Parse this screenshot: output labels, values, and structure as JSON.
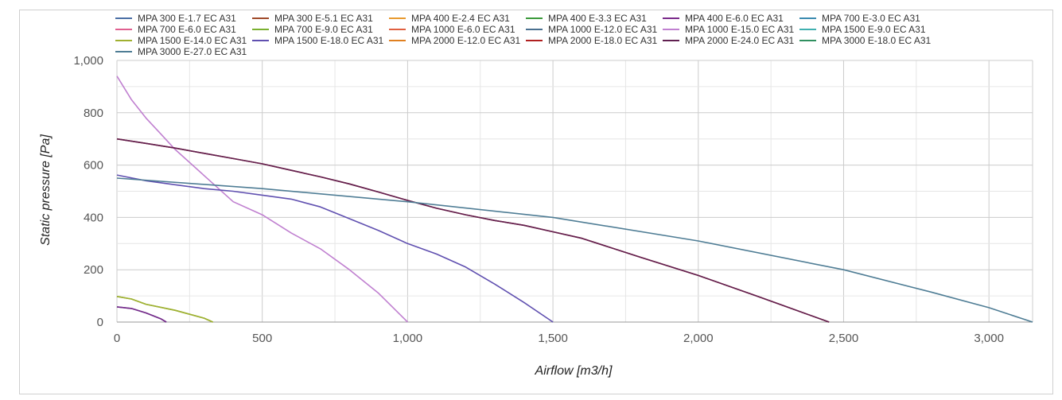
{
  "chart_data": {
    "type": "line",
    "title": "",
    "xlabel": "Airflow [m3/h]",
    "ylabel": "Static pressure [Pa]",
    "xlim": [
      0,
      3150
    ],
    "ylim": [
      0,
      1000
    ],
    "x_ticks": [
      0,
      500,
      1000,
      1500,
      2000,
      2500,
      3000
    ],
    "x_tick_labels": [
      "0",
      "500",
      "1,000",
      "1,500",
      "2,000",
      "2,500",
      "3,000"
    ],
    "y_ticks": [
      0,
      200,
      400,
      600,
      800,
      1000
    ],
    "y_tick_labels": [
      "0",
      "200",
      "400",
      "600",
      "800",
      "1,000"
    ],
    "grid": true,
    "legend_position": "top",
    "series": [
      {
        "name": "MPA 300 E-1.7 EC A31",
        "color": "#4a6fa5",
        "x": [
          0,
          50,
          100,
          150,
          170
        ],
        "y": [
          58,
          52,
          35,
          13,
          0
        ]
      },
      {
        "name": "MPA 300 E-5.1 EC A31",
        "color": "#a04a2a",
        "x": [],
        "y": []
      },
      {
        "name": "MPA 400 E-2.4 EC A31",
        "color": "#e89a2e",
        "x": [],
        "y": []
      },
      {
        "name": "MPA 400 E-3.3 EC A31",
        "color": "#3a9a3a",
        "x": [],
        "y": []
      },
      {
        "name": "MPA 400 E-6.0 EC A31",
        "color": "#7a2a8a",
        "x": [
          0,
          50,
          100,
          150,
          170
        ],
        "y": [
          58,
          52,
          35,
          13,
          0
        ]
      },
      {
        "name": "MPA 700 E-3.0 EC A31",
        "color": "#3a8ab0",
        "x": [],
        "y": []
      },
      {
        "name": "MPA 700 E-6.0 EC A31",
        "color": "#e06090",
        "x": [],
        "y": []
      },
      {
        "name": "MPA 700 E-9.0 EC A31",
        "color": "#7ab030",
        "x": [
          0,
          50,
          100,
          200,
          300,
          330
        ],
        "y": [
          98,
          88,
          68,
          45,
          15,
          0
        ]
      },
      {
        "name": "MPA 1000 E-6.0 EC A31",
        "color": "#e06040",
        "x": [],
        "y": []
      },
      {
        "name": "MPA 1000 E-12.0 EC A31",
        "color": "#4a7090",
        "x": [],
        "y": []
      },
      {
        "name": "MPA 1000 E-15.0 EC A31",
        "color": "#c080d0",
        "x": [
          0,
          50,
          100,
          150,
          200,
          300,
          400,
          500,
          600,
          700,
          800,
          900,
          1000
        ],
        "y": [
          940,
          850,
          780,
          720,
          660,
          560,
          460,
          410,
          340,
          280,
          200,
          110,
          0
        ]
      },
      {
        "name": "MPA 1500 E-9.0 EC A31",
        "color": "#40b0b0",
        "x": [],
        "y": []
      },
      {
        "name": "MPA 1500 E-14.0 EC A31",
        "color": "#a0b030",
        "x": [
          0,
          50,
          100,
          200,
          300,
          330
        ],
        "y": [
          98,
          88,
          68,
          45,
          15,
          0
        ]
      },
      {
        "name": "MPA 1500 E-18.0 EC A31",
        "color": "#6050b0",
        "x": [
          0,
          100,
          200,
          300,
          400,
          500,
          600,
          700,
          800,
          900,
          1000,
          1100,
          1200,
          1300,
          1400,
          1500
        ],
        "y": [
          562,
          540,
          525,
          510,
          500,
          485,
          470,
          440,
          395,
          350,
          300,
          260,
          210,
          145,
          75,
          0
        ]
      },
      {
        "name": "MPA 2000 E-12.0 EC A31",
        "color": "#e08020",
        "x": [],
        "y": []
      },
      {
        "name": "MPA 2000 E-18.0 EC A31",
        "color": "#b02020",
        "x": [
          0,
          100,
          200,
          300,
          400,
          500,
          600,
          700,
          800,
          900,
          1000,
          1100,
          1200,
          1300,
          1400,
          1500,
          1600,
          1800,
          2000,
          2200,
          2450
        ],
        "y": [
          700,
          683,
          665,
          645,
          625,
          605,
          580,
          555,
          528,
          497,
          465,
          435,
          410,
          388,
          370,
          345,
          320,
          248,
          178,
          100,
          0
        ]
      },
      {
        "name": "MPA 2000 E-24.0 EC A31",
        "color": "#602050",
        "x": [
          0,
          100,
          200,
          300,
          400,
          500,
          600,
          700,
          800,
          900,
          1000,
          1100,
          1200,
          1300,
          1400,
          1500,
          1600,
          1800,
          2000,
          2200,
          2450
        ],
        "y": [
          700,
          683,
          665,
          645,
          625,
          605,
          580,
          555,
          528,
          497,
          465,
          435,
          410,
          388,
          370,
          345,
          320,
          248,
          178,
          100,
          0
        ]
      },
      {
        "name": "MPA 3000 E-18.0 EC A31",
        "color": "#309060",
        "x": [],
        "y": []
      },
      {
        "name": "MPA 3000 E-27.0 EC A31",
        "color": "#4f7d95",
        "x": [
          0,
          500,
          1000,
          1500,
          2000,
          2500,
          2800,
          3000,
          3150
        ],
        "y": [
          550,
          510,
          460,
          400,
          310,
          200,
          115,
          55,
          0
        ]
      }
    ]
  }
}
